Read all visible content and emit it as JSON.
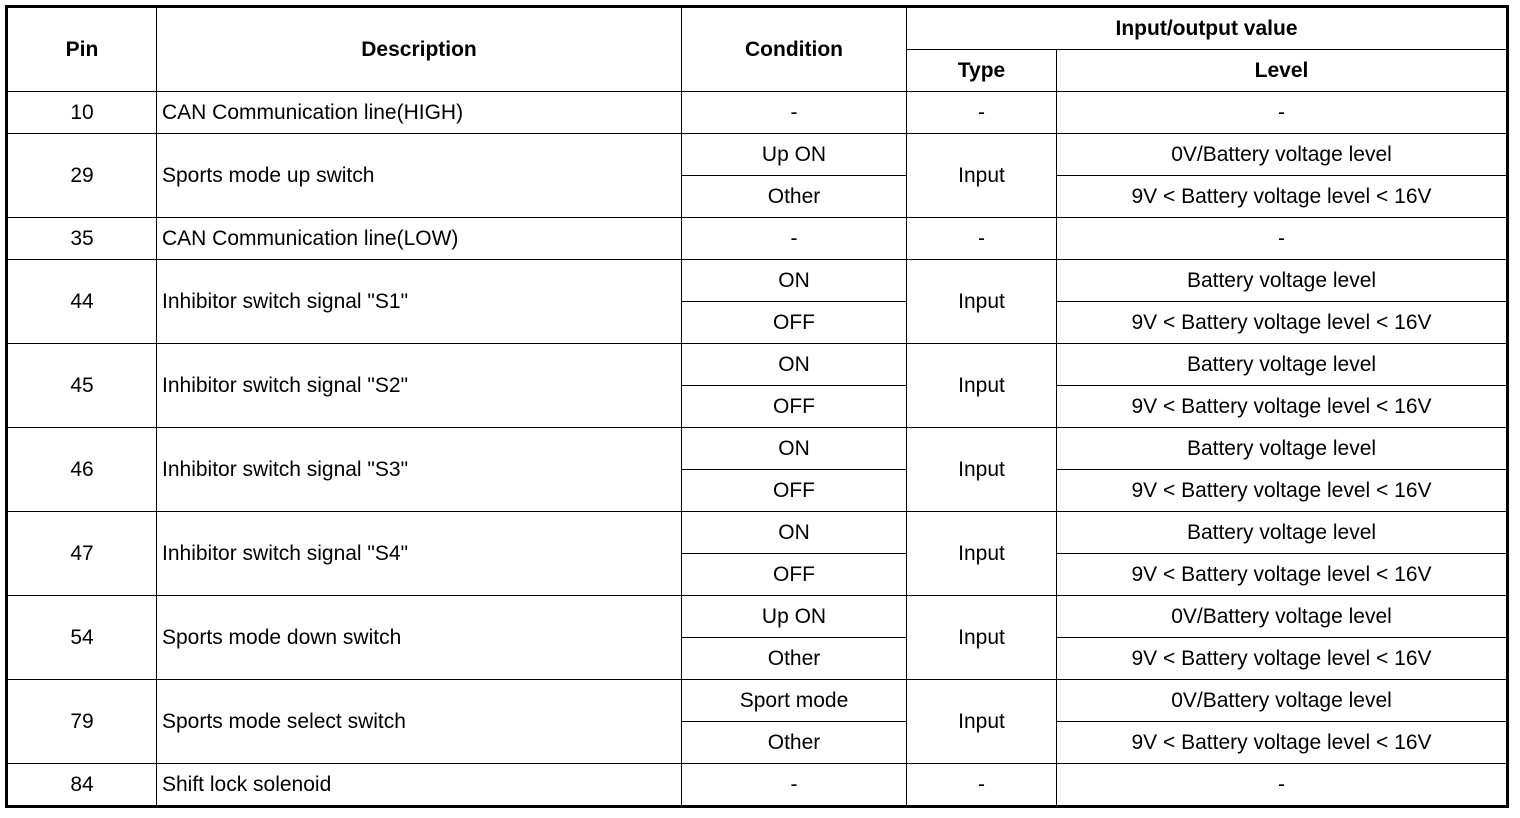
{
  "header": {
    "pin": "Pin",
    "description": "Description",
    "condition": "Condition",
    "io_value": "Input/output value",
    "type": "Type",
    "level": "Level"
  },
  "rows": [
    {
      "pin": "10",
      "description": "CAN Communication line(HIGH)",
      "type": "-",
      "sub": [
        {
          "condition": "-",
          "level": "-"
        }
      ]
    },
    {
      "pin": "29",
      "description": "Sports mode up switch",
      "type": "Input",
      "sub": [
        {
          "condition": "Up ON",
          "level": "0V/Battery voltage level"
        },
        {
          "condition": "Other",
          "level": "9V < Battery voltage level < 16V"
        }
      ]
    },
    {
      "pin": "35",
      "description": "CAN Communication line(LOW)",
      "type": "-",
      "sub": [
        {
          "condition": "-",
          "level": "-"
        }
      ]
    },
    {
      "pin": "44",
      "description": "Inhibitor switch signal \"S1\"",
      "type": "Input",
      "sub": [
        {
          "condition": "ON",
          "level": "Battery voltage level"
        },
        {
          "condition": "OFF",
          "level": "9V < Battery voltage level < 16V"
        }
      ]
    },
    {
      "pin": "45",
      "description": "Inhibitor switch signal \"S2\"",
      "type": "Input",
      "sub": [
        {
          "condition": "ON",
          "level": "Battery voltage level"
        },
        {
          "condition": "OFF",
          "level": "9V < Battery voltage level < 16V"
        }
      ]
    },
    {
      "pin": "46",
      "description": "Inhibitor switch signal \"S3\"",
      "type": "Input",
      "sub": [
        {
          "condition": "ON",
          "level": "Battery voltage level"
        },
        {
          "condition": "OFF",
          "level": "9V < Battery voltage level < 16V"
        }
      ]
    },
    {
      "pin": "47",
      "description": "Inhibitor switch signal \"S4\"",
      "type": "Input",
      "sub": [
        {
          "condition": "ON",
          "level": "Battery voltage level"
        },
        {
          "condition": "OFF",
          "level": "9V < Battery voltage level < 16V"
        }
      ]
    },
    {
      "pin": "54",
      "description": "Sports mode down switch",
      "type": "Input",
      "sub": [
        {
          "condition": "Up ON",
          "level": "0V/Battery voltage level"
        },
        {
          "condition": "Other",
          "level": "9V < Battery voltage level < 16V"
        }
      ]
    },
    {
      "pin": "79",
      "description": "Sports mode select switch",
      "type": "Input",
      "sub": [
        {
          "condition": "Sport mode",
          "level": "0V/Battery voltage level"
        },
        {
          "condition": "Other",
          "level": "9V < Battery voltage level < 16V"
        }
      ]
    },
    {
      "pin": "84",
      "description": "Shift lock solenoid",
      "type": "-",
      "sub": [
        {
          "condition": "-",
          "level": "-"
        }
      ]
    }
  ]
}
